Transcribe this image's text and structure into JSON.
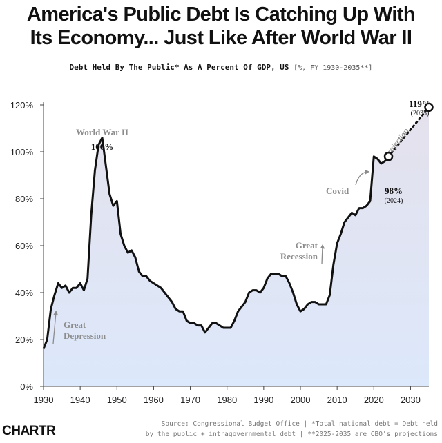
{
  "header": {
    "title_line1": "America's Public Debt Is Catching Up With",
    "title_line2": "Its Economy... Just Like After World War II",
    "subtitle_main": "Debt Held By The Public* As A Percent Of GDP, US",
    "subtitle_note": "[%, FY 1930-2035**]"
  },
  "footer": {
    "logo": "CHARTR",
    "source_line1": "Source: Congressional Budget Office | *Total national debt = Debt held",
    "source_line2": "by the public + intragovernmental debt | **2025-2035 are CBO's projections"
  },
  "colors": {
    "line": "#111111",
    "fill_top": "#e4e1ec",
    "fill_bottom": "#dce8fb",
    "axis": "#444444",
    "annotation_gray": "#8c8c8c"
  },
  "chart_data": {
    "type": "line",
    "xlim": [
      1930,
      2035
    ],
    "ylim": [
      0,
      130
    ],
    "x_ticks": [
      1930,
      1940,
      1950,
      1960,
      1970,
      1980,
      1990,
      2000,
      2010,
      2020,
      2030
    ],
    "x_tick_labels": [
      "1930",
      "1940",
      "1950",
      "1960",
      "1970",
      "1980",
      "1990",
      "2000",
      "2010",
      "2020",
      "2030"
    ],
    "y_ticks": [
      0,
      20,
      40,
      60,
      80,
      100,
      120
    ],
    "y_tick_labels": [
      "0%",
      "20%",
      "40%",
      "60%",
      "80%",
      "100%",
      "120%"
    ],
    "grid": false,
    "series": [
      {
        "style": "solid",
        "x": [
          1930,
          1931,
          1932,
          1933,
          1934,
          1935,
          1936,
          1937,
          1938,
          1939,
          1940,
          1941,
          1942,
          1943,
          1944,
          1945,
          1946,
          1947,
          1948,
          1949,
          1950,
          1951,
          1952,
          1953,
          1954,
          1955,
          1956,
          1957,
          1958,
          1959,
          1960,
          1961,
          1962,
          1963,
          1964,
          1965,
          1966,
          1967,
          1968,
          1969,
          1970,
          1971,
          1972,
          1973,
          1974,
          1975,
          1976,
          1977,
          1978,
          1979,
          1980,
          1981,
          1982,
          1983,
          1984,
          1985,
          1986,
          1987,
          1988,
          1989,
          1990,
          1991,
          1992,
          1993,
          1994,
          1995,
          1996,
          1997,
          1998,
          1999,
          2000,
          2001,
          2002,
          2003,
          2004,
          2005,
          2006,
          2007,
          2008,
          2009,
          2010,
          2011,
          2012,
          2013,
          2014,
          2015,
          2016,
          2017,
          2018,
          2019,
          2020,
          2021,
          2022,
          2023,
          2024
        ],
        "y": [
          16,
          20,
          33,
          39,
          44,
          42,
          43,
          40,
          42,
          42,
          44,
          41,
          46,
          73,
          92,
          103,
          106,
          94,
          82,
          77,
          79,
          65,
          60,
          57,
          58,
          55,
          49,
          47,
          47,
          45,
          44,
          43,
          42,
          40,
          38,
          36,
          33,
          32,
          32,
          28,
          27,
          27,
          26,
          26,
          23,
          25,
          27,
          27,
          26,
          25,
          25,
          25,
          28,
          32,
          34,
          36,
          40,
          41,
          41,
          40,
          42,
          46,
          48,
          48,
          48,
          47,
          47,
          44,
          40,
          35,
          32,
          33,
          35,
          36,
          36,
          35,
          35,
          35,
          39,
          52,
          61,
          65,
          70,
          72,
          74,
          73,
          76,
          76,
          77,
          79,
          98,
          97,
          95,
          96,
          98
        ]
      },
      {
        "style": "dotted",
        "x": [
          2024,
          2035
        ],
        "y": [
          98,
          119
        ]
      }
    ],
    "annotations": {
      "great_depression": [
        "Great",
        "Depression"
      ],
      "world_war_ii": "World War II",
      "peak_wwii": "106%",
      "great_recession": [
        "Great",
        "Recession"
      ],
      "covid": "Covid",
      "value_2024": "98%",
      "year_2024": "(2024)",
      "value_2035": "119%",
      "year_2035": "(2035)",
      "projection": "Projection"
    }
  }
}
